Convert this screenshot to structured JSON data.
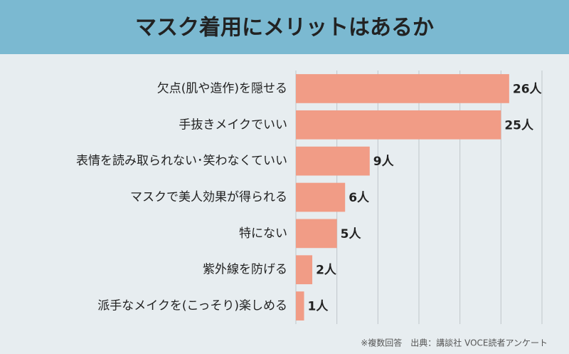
{
  "chart_data": {
    "type": "barh",
    "title": "マスク着用にメリットはあるか",
    "categories": [
      "欠点(肌や造作)を隠せる",
      "手抜きメイクでいい",
      "表情を読み取られない･笑わなくていい",
      "マスクで美人効果が得られる",
      "特にない",
      "紫外線を防げる",
      "派手なメイクを(こっそり)楽しめる"
    ],
    "values": [
      26,
      25,
      9,
      6,
      5,
      2,
      1
    ],
    "value_labels": [
      "26人",
      "25人",
      "9人",
      "6人",
      "5人",
      "2人",
      "1人"
    ],
    "color": "#f19c86",
    "xlim": [
      0,
      30
    ],
    "xticks": [
      0,
      5,
      10,
      15,
      20,
      25,
      30
    ],
    "grid": true,
    "note": "※複数回答　出典：講談社 VOCE読者アンケート"
  }
}
